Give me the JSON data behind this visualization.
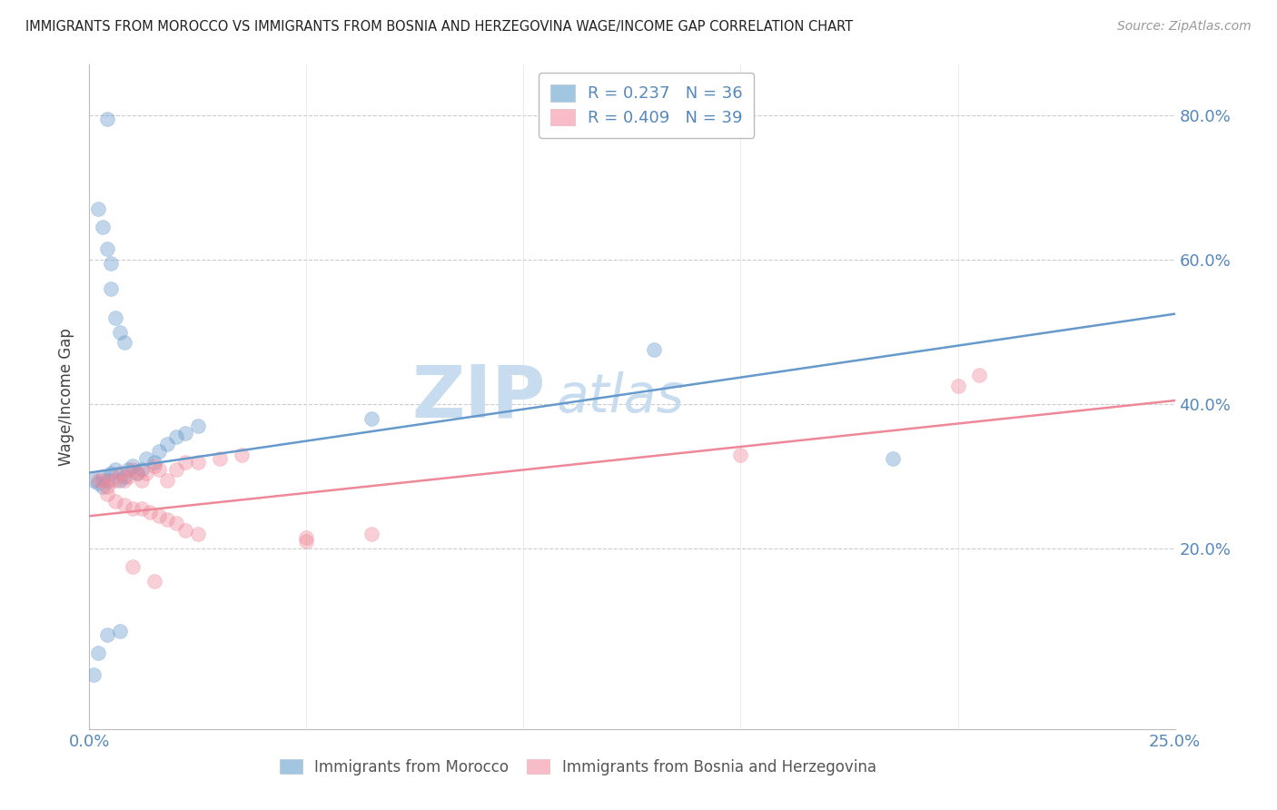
{
  "title": "IMMIGRANTS FROM MOROCCO VS IMMIGRANTS FROM BOSNIA AND HERZEGOVINA WAGE/INCOME GAP CORRELATION CHART",
  "source": "Source: ZipAtlas.com",
  "ylabel": "Wage/Income Gap",
  "x_min": 0.0,
  "x_max": 0.25,
  "y_min": -0.05,
  "y_max": 0.87,
  "x_ticks": [
    0.0,
    0.05,
    0.1,
    0.15,
    0.2,
    0.25
  ],
  "x_tick_labels": [
    "0.0%",
    "",
    "",
    "",
    "",
    "25.0%"
  ],
  "y_ticks": [
    0.2,
    0.4,
    0.6,
    0.8
  ],
  "y_tick_labels": [
    "20.0%",
    "40.0%",
    "60.0%",
    "80.0%"
  ],
  "legend1_label": "R = 0.237   N = 36",
  "legend2_label": "R = 0.409   N = 39",
  "legend_color1": "#7BAFD4",
  "legend_color2": "#F4A0B0",
  "watermark_line1": "ZIP",
  "watermark_line2": "atlas",
  "watermark_color": "#C8DCF0",
  "scatter_blue": [
    [
      0.001,
      0.295
    ],
    [
      0.002,
      0.29
    ],
    [
      0.003,
      0.285
    ],
    [
      0.003,
      0.3
    ],
    [
      0.004,
      0.295
    ],
    [
      0.005,
      0.305
    ],
    [
      0.006,
      0.31
    ],
    [
      0.007,
      0.295
    ],
    [
      0.008,
      0.3
    ],
    [
      0.009,
      0.31
    ],
    [
      0.01,
      0.315
    ],
    [
      0.011,
      0.305
    ],
    [
      0.012,
      0.31
    ],
    [
      0.013,
      0.325
    ],
    [
      0.015,
      0.32
    ],
    [
      0.016,
      0.335
    ],
    [
      0.018,
      0.345
    ],
    [
      0.02,
      0.355
    ],
    [
      0.022,
      0.36
    ],
    [
      0.025,
      0.37
    ],
    [
      0.002,
      0.67
    ],
    [
      0.003,
      0.645
    ],
    [
      0.004,
      0.615
    ],
    [
      0.005,
      0.595
    ],
    [
      0.005,
      0.56
    ],
    [
      0.006,
      0.52
    ],
    [
      0.007,
      0.5
    ],
    [
      0.008,
      0.485
    ],
    [
      0.13,
      0.475
    ],
    [
      0.185,
      0.325
    ],
    [
      0.065,
      0.38
    ],
    [
      0.001,
      0.025
    ],
    [
      0.002,
      0.055
    ],
    [
      0.004,
      0.08
    ],
    [
      0.007,
      0.085
    ],
    [
      0.004,
      0.795
    ]
  ],
  "scatter_pink": [
    [
      0.002,
      0.295
    ],
    [
      0.003,
      0.295
    ],
    [
      0.004,
      0.285
    ],
    [
      0.005,
      0.295
    ],
    [
      0.006,
      0.295
    ],
    [
      0.007,
      0.305
    ],
    [
      0.008,
      0.295
    ],
    [
      0.009,
      0.3
    ],
    [
      0.01,
      0.31
    ],
    [
      0.011,
      0.305
    ],
    [
      0.012,
      0.295
    ],
    [
      0.013,
      0.305
    ],
    [
      0.015,
      0.315
    ],
    [
      0.016,
      0.31
    ],
    [
      0.018,
      0.295
    ],
    [
      0.02,
      0.31
    ],
    [
      0.022,
      0.32
    ],
    [
      0.025,
      0.32
    ],
    [
      0.03,
      0.325
    ],
    [
      0.035,
      0.33
    ],
    [
      0.004,
      0.275
    ],
    [
      0.006,
      0.265
    ],
    [
      0.008,
      0.26
    ],
    [
      0.01,
      0.255
    ],
    [
      0.012,
      0.255
    ],
    [
      0.014,
      0.25
    ],
    [
      0.016,
      0.245
    ],
    [
      0.018,
      0.24
    ],
    [
      0.02,
      0.235
    ],
    [
      0.022,
      0.225
    ],
    [
      0.025,
      0.22
    ],
    [
      0.05,
      0.215
    ],
    [
      0.065,
      0.22
    ],
    [
      0.15,
      0.33
    ],
    [
      0.2,
      0.425
    ],
    [
      0.205,
      0.44
    ],
    [
      0.01,
      0.175
    ],
    [
      0.015,
      0.155
    ],
    [
      0.05,
      0.21
    ]
  ],
  "blue_line_x": [
    0.0,
    0.25
  ],
  "blue_line_y": [
    0.305,
    0.525
  ],
  "pink_line_x": [
    0.0,
    0.25
  ],
  "pink_line_y": [
    0.245,
    0.405
  ],
  "blue_color": "#6699CC",
  "pink_color": "#EE8899",
  "dot_size": 130,
  "dot_alpha": 0.4,
  "grid_color": "#CCCCCC",
  "tick_color": "#5588BB"
}
